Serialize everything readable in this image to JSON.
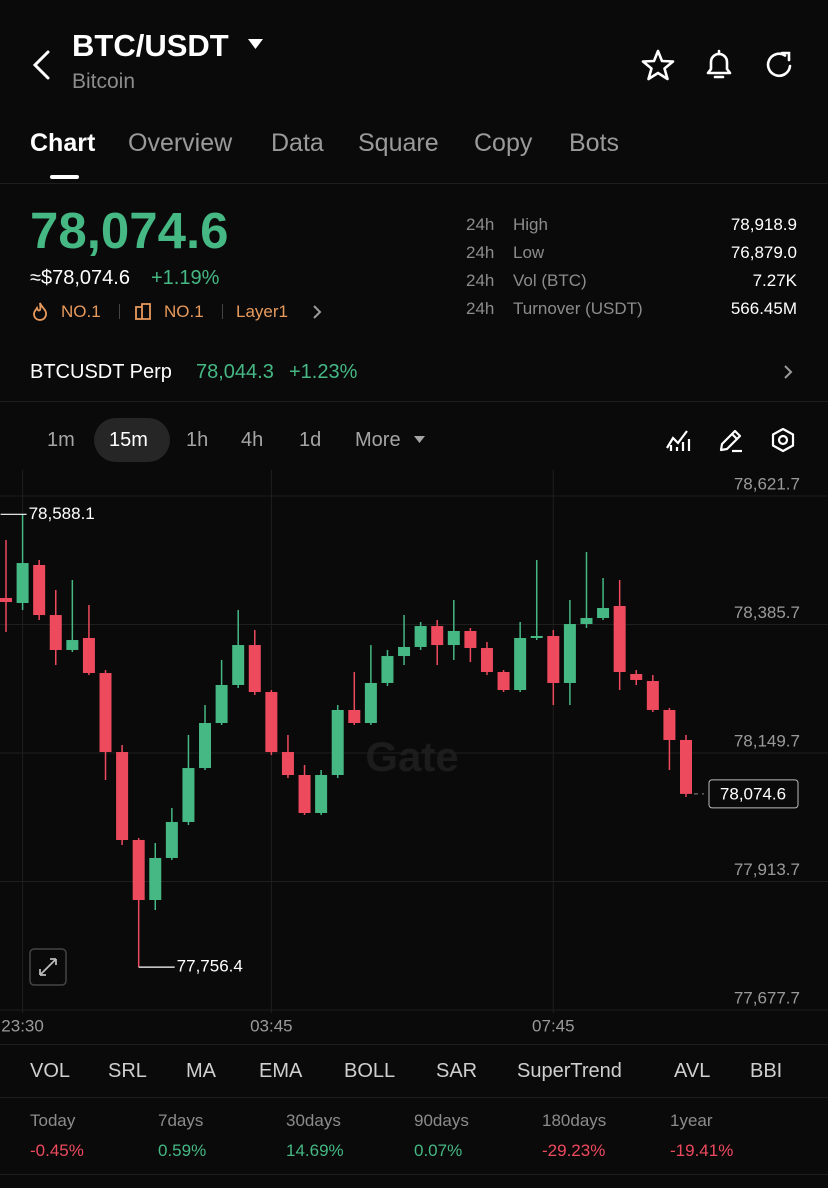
{
  "header": {
    "title": "BTC/USDT",
    "subtitle": "Bitcoin"
  },
  "tabs": [
    "Chart",
    "Overview",
    "Data",
    "Square",
    "Copy",
    "Bots"
  ],
  "ticker": {
    "price": "78,074.6",
    "usd_price": "≈$78,074.6",
    "change": "+1.19%",
    "tags": [
      "NO.1",
      "NO.1",
      "Layer1"
    ]
  },
  "stats": [
    {
      "period": "24h",
      "label": "High",
      "value": "78,918.9"
    },
    {
      "period": "24h",
      "label": "Low",
      "value": "76,879.0"
    },
    {
      "period": "24h",
      "label": "Vol (BTC)",
      "value": "7.27K"
    },
    {
      "period": "24h",
      "label": "Turnover (USDT)",
      "value": "566.45M"
    }
  ],
  "perp": {
    "name": "BTCUSDT Perp",
    "price": "78,044.3",
    "change": "+1.23%"
  },
  "intervals": [
    "1m",
    "15m",
    "1h",
    "4h",
    "1d",
    "More"
  ],
  "chart_data": {
    "type": "candlestick",
    "categories": [
      null,
      "23:30",
      null,
      null,
      null,
      null,
      null,
      null,
      null,
      null,
      null,
      null,
      null,
      null,
      null,
      null,
      "03:45",
      null,
      null,
      null,
      null,
      null,
      null,
      null,
      null,
      null,
      null,
      null,
      null,
      null,
      null,
      null,
      null,
      "07:45",
      null,
      null,
      null,
      null,
      null,
      null,
      null,
      null
    ],
    "open": [
      78434.4,
      78425.2,
      78495.0,
      78403.1,
      78338.9,
      78360.9,
      78296.6,
      78151.5,
      77989.9,
      77879.7,
      77956.9,
      78023.0,
      78122.1,
      78204.8,
      78274.6,
      78348.0,
      78261.7,
      78151.5,
      78109.3,
      78039.5,
      78109.3,
      78228.7,
      78204.8,
      78278.3,
      78327.8,
      78344.4,
      78382.9,
      78348.0,
      78373.8,
      78342.5,
      78298.5,
      78265.4,
      78360.9,
      78364.6,
      78278.3,
      78386.6,
      78397.6,
      78419.7,
      78294.8,
      78281.9,
      78228.7,
      78173.6
    ],
    "high": [
      78540.9,
      78588.1,
      78504.2,
      78449.1,
      78467.4,
      78421.5,
      78302.1,
      78164.4,
      77993.6,
      77984.4,
      78048.7,
      78182.8,
      78237.8,
      78320.5,
      78412.3,
      78375.6,
      78265.4,
      78182.8,
      78127.7,
      78118.5,
      78237.8,
      78298.5,
      78348.0,
      78338.9,
      78403.1,
      78390.3,
      78394.0,
      78430.7,
      78379.3,
      78353.6,
      78302.1,
      78390.3,
      78504.2,
      78375.6,
      78430.7,
      78518.8,
      78471.1,
      78467.4,
      78302.1,
      78292.9,
      78232.3,
      78182.8
    ],
    "low": [
      78371.9,
      78412.3,
      78394.0,
      78311.3,
      78335.2,
      78292.9,
      78100.1,
      77980.7,
      77756.4,
      77861.3,
      77953.2,
      78017.5,
      78118.5,
      78201.1,
      78269.1,
      78256.2,
      78146.0,
      78103.8,
      78035.8,
      78035.8,
      78103.8,
      78201.1,
      78201.1,
      78272.7,
      78311.3,
      78338.9,
      78311.3,
      78320.5,
      78316.8,
      78292.9,
      78261.7,
      78261.7,
      78357.2,
      78237.8,
      78237.8,
      78379.3,
      78394.0,
      78265.4,
      78274.6,
      78225.0,
      78118.5,
      78068.9
    ],
    "close": [
      78427.0,
      78498.6,
      78403.1,
      78338.9,
      78357.2,
      78296.6,
      78151.5,
      77989.9,
      77879.7,
      77956.9,
      78023.0,
      78122.1,
      78204.8,
      78274.6,
      78348.0,
      78261.7,
      78151.5,
      78109.3,
      78039.5,
      78109.3,
      78228.7,
      78204.8,
      78278.3,
      78327.8,
      78344.4,
      78382.9,
      78348.0,
      78373.8,
      78342.5,
      78298.5,
      78265.4,
      78360.9,
      78364.6,
      78278.3,
      78386.6,
      78397.6,
      78416.0,
      78298.5,
      78283.8,
      78228.7,
      78173.6,
      78074.6
    ],
    "ylim": [
      77677.7,
      78621.7
    ],
    "yticks": [
      {
        "value": 77677.7,
        "label": "77,677.7"
      },
      {
        "value": 77913.7,
        "label": "77,913.7"
      },
      {
        "value": 78149.7,
        "label": "78,149.7"
      },
      {
        "value": 78385.7,
        "label": "78,385.7"
      },
      {
        "value": 78621.7,
        "label": "78,621.7"
      }
    ],
    "grid": true,
    "up_color": "#45b884",
    "down_color": "#ee4a5e",
    "high_label": "78,588.1",
    "low_label": "77,756.4",
    "last_label": "78,074.6",
    "watermark": "Gate"
  },
  "indicators": [
    "VOL",
    "SRL",
    "MA",
    "EMA",
    "BOLL",
    "SAR",
    "SuperTrend",
    "AVL",
    "BBI"
  ],
  "returns": [
    {
      "label": "Today",
      "value": "-0.45%",
      "color": "#ee4a5e"
    },
    {
      "label": "7days",
      "value": "0.59%",
      "color": "#45b884"
    },
    {
      "label": "30days",
      "value": "14.69%",
      "color": "#45b884"
    },
    {
      "label": "90days",
      "value": "0.07%",
      "color": "#45b884"
    },
    {
      "label": "180days",
      "value": "-29.23%",
      "color": "#ee4a5e"
    },
    {
      "label": "1year",
      "value": "-19.41%",
      "color": "#ee4a5e"
    }
  ]
}
